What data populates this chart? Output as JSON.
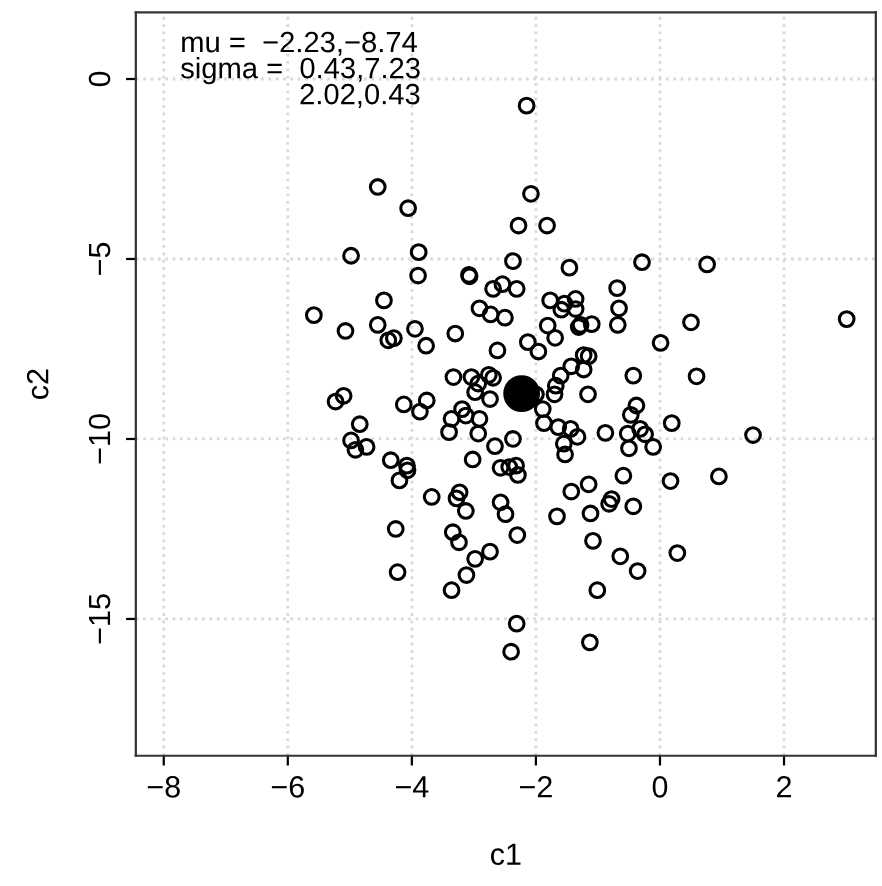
{
  "chart_data": {
    "type": "scatter",
    "xlabel": "c1",
    "ylabel": "c2",
    "xlim": [
      -8.45,
      3.48
    ],
    "ylim": [
      -18.8,
      1.85
    ],
    "xticks": [
      -8,
      -6,
      -4,
      -2,
      0,
      2
    ],
    "yticks": [
      0,
      -5,
      -10,
      -15
    ],
    "grid": true,
    "marker": "circle",
    "annotations": [
      "mu =  −2.23,−8.74",
      "sigma =  0.43,7.23",
      "2.02,0.43"
    ],
    "series": [
      {
        "color": "#000000",
        "x": [
          -2.15,
          -4.55,
          -4.06,
          -2.08,
          -2.28,
          -1.82,
          -4.98,
          -3.89,
          -3.9,
          -2.37,
          -3.07,
          -3.08,
          -1.46,
          -0.29,
          0.76,
          -2.69,
          -2.54,
          -2.31,
          -4.45,
          -5.58,
          -2.91,
          -2.73,
          -2.5,
          -1.77,
          -1.54,
          -1.36,
          -1.59,
          -1.36,
          -0.69,
          -0.66,
          -4.55,
          -5.07,
          -3.95,
          -4.38,
          -4.29,
          -3.77,
          -3.3,
          -2.62,
          -2.13,
          -1.96,
          -1.81,
          -1.69,
          -1.31,
          -1.28,
          -1.1,
          -0.68,
          0.01,
          0.5,
          3.01,
          -1.23,
          -1.15,
          -1.43,
          -1.23,
          -1.6,
          -1.68,
          -1.7,
          -1.16,
          -3.33,
          -3.04,
          -2.93,
          -2.76,
          -2.69,
          -2.74,
          -2.98,
          -2.0,
          -0.43,
          0.59,
          -5.23,
          -5.1,
          -4.13,
          -3.76,
          -3.87,
          -4.84,
          -4.98,
          -4.91,
          -4.73,
          -3.19,
          -3.36,
          -3.4,
          -3.13,
          -2.91,
          -2.93,
          -1.89,
          -1.87,
          -1.64,
          -1.44,
          -1.33,
          -1.55,
          -1.53,
          -2.37,
          -2.66,
          -0.88,
          -0.38,
          -0.47,
          -0.52,
          -0.32,
          -0.24,
          -0.5,
          -0.11,
          0.19,
          1.5,
          -4.34,
          -4.08,
          -4.07,
          -4.2,
          -3.02,
          -2.57,
          -2.43,
          -2.32,
          -2.29,
          -0.59,
          0.17,
          0.95,
          -1.15,
          -1.43,
          -3.68,
          -3.23,
          -3.28,
          -3.13,
          -2.57,
          -2.49,
          -0.78,
          -0.82,
          -0.43,
          -1.12,
          -1.66,
          -4.26,
          -3.34,
          -3.24,
          -2.3,
          -1.08,
          -2.98,
          -2.74,
          -0.64,
          0.28,
          -4.23,
          -3.12,
          -0.36,
          -3.36,
          -1.01,
          -2.31,
          -1.13,
          -2.4
        ],
        "values": [
          -0.74,
          -3.0,
          -3.59,
          -3.19,
          -4.07,
          -4.07,
          -4.91,
          -4.81,
          -5.46,
          -5.06,
          -5.48,
          -5.44,
          -5.24,
          -5.09,
          -5.15,
          -5.83,
          -5.7,
          -5.83,
          -6.15,
          -6.56,
          -6.37,
          -6.54,
          -6.63,
          -6.15,
          -6.24,
          -6.11,
          -6.41,
          -6.39,
          -5.81,
          -6.37,
          -6.83,
          -7.0,
          -6.94,
          -7.26,
          -7.2,
          -7.41,
          -7.07,
          -7.54,
          -7.31,
          -7.57,
          -6.85,
          -7.19,
          -6.89,
          -6.83,
          -6.81,
          -6.83,
          -7.33,
          -6.76,
          -6.67,
          -7.67,
          -7.7,
          -7.98,
          -8.07,
          -8.24,
          -8.52,
          -8.76,
          -8.76,
          -8.28,
          -8.28,
          -8.46,
          -8.22,
          -8.3,
          -8.89,
          -8.7,
          -8.76,
          -8.24,
          -8.26,
          -8.96,
          -8.8,
          -9.04,
          -8.93,
          -9.24,
          -9.59,
          -10.04,
          -10.3,
          -10.22,
          -9.17,
          -9.44,
          -9.81,
          -9.35,
          -9.44,
          -9.85,
          -9.17,
          -9.56,
          -9.67,
          -9.72,
          -9.94,
          -10.13,
          -10.43,
          -10.0,
          -10.2,
          -9.83,
          -9.07,
          -9.33,
          -9.85,
          -9.72,
          -9.87,
          -10.26,
          -10.22,
          -9.56,
          -9.89,
          -10.59,
          -10.74,
          -10.87,
          -11.15,
          -10.57,
          -10.8,
          -10.78,
          -10.74,
          -11.0,
          -11.02,
          -11.17,
          -11.04,
          -11.26,
          -11.46,
          -11.61,
          -11.48,
          -11.65,
          -12.0,
          -11.76,
          -12.09,
          -11.67,
          -11.8,
          -11.87,
          -12.07,
          -12.15,
          -12.5,
          -12.59,
          -12.87,
          -12.67,
          -12.83,
          -13.33,
          -13.13,
          -13.26,
          -13.17,
          -13.7,
          -13.78,
          -13.67,
          -14.2,
          -14.2,
          -15.13,
          -15.65,
          -15.91
        ]
      },
      {
        "type": "bubble",
        "color": "#000000",
        "x": [
          -2.23
        ],
        "values": [
          -8.74
        ],
        "sizes": [
          1
        ]
      }
    ]
  }
}
